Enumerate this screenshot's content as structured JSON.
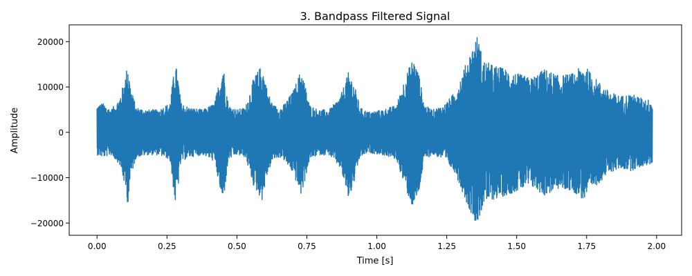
{
  "chart_data": {
    "type": "line",
    "title": "3. Bandpass Filtered Signal",
    "xlabel": "Time [s]",
    "ylabel": "Amplitude",
    "xlim": [
      -0.0995,
      2.0895
    ],
    "ylim": [
      -22700,
      23700
    ],
    "xticks": [
      0.0,
      0.25,
      0.5,
      0.75,
      1.0,
      1.25,
      1.5,
      1.75,
      2.0
    ],
    "xtick_labels": [
      "0.00",
      "0.25",
      "0.50",
      "0.75",
      "1.00",
      "1.25",
      "1.50",
      "1.75",
      "2.00"
    ],
    "yticks": [
      -20000,
      -10000,
      0,
      10000,
      20000
    ],
    "ytick_labels": [
      "−20000",
      "−10000",
      "0",
      "10000",
      "20000"
    ],
    "grid": false,
    "series": [
      {
        "color": "#1f77b4",
        "x_range": [
          0.0,
          1.985
        ],
        "envelope": {
          "t": [
            0.0,
            0.02,
            0.05,
            0.08,
            0.1,
            0.11,
            0.12,
            0.14,
            0.18,
            0.22,
            0.26,
            0.28,
            0.29,
            0.3,
            0.33,
            0.38,
            0.42,
            0.45,
            0.46,
            0.47,
            0.5,
            0.53,
            0.56,
            0.59,
            0.61,
            0.63,
            0.66,
            0.7,
            0.73,
            0.74,
            0.76,
            0.79,
            0.83,
            0.87,
            0.9,
            0.92,
            0.94,
            0.97,
            1.02,
            1.07,
            1.1,
            1.13,
            1.15,
            1.17,
            1.2,
            1.24,
            1.28,
            1.33,
            1.36,
            1.38,
            1.41,
            1.46,
            1.5,
            1.55,
            1.6,
            1.65,
            1.7,
            1.74,
            1.78,
            1.83,
            1.87,
            1.91,
            1.95,
            1.985
          ],
          "upper": [
            6000,
            6500,
            5000,
            7500,
            12000,
            15500,
            10000,
            5500,
            5000,
            5000,
            6500,
            15500,
            12000,
            6500,
            5500,
            5000,
            6500,
            15000,
            11000,
            6000,
            5000,
            5500,
            12000,
            15000,
            9000,
            6000,
            5500,
            9000,
            14000,
            11500,
            6000,
            5000,
            5000,
            8000,
            13500,
            10500,
            5500,
            4500,
            5000,
            6000,
            12000,
            16500,
            13000,
            6000,
            5000,
            6000,
            9000,
            17000,
            21500,
            16000,
            15000,
            14000,
            13000,
            12000,
            14000,
            12500,
            13000,
            15000,
            12000,
            9000,
            8000,
            8500,
            7500,
            7000
          ],
          "lower": [
            -5000,
            -5500,
            -5000,
            -7000,
            -12000,
            -16000,
            -10000,
            -5500,
            -5000,
            -5000,
            -6000,
            -16000,
            -12000,
            -6500,
            -5500,
            -5000,
            -6500,
            -16000,
            -11000,
            -6000,
            -5000,
            -5500,
            -12000,
            -15000,
            -9000,
            -6000,
            -5500,
            -9000,
            -14000,
            -11500,
            -6000,
            -5000,
            -5000,
            -8000,
            -15000,
            -11000,
            -5500,
            -4500,
            -5000,
            -6000,
            -12000,
            -17000,
            -13500,
            -6000,
            -5000,
            -6000,
            -9000,
            -17000,
            -20500,
            -16000,
            -15000,
            -14000,
            -13000,
            -12000,
            -14000,
            -12500,
            -13000,
            -15000,
            -12000,
            -9000,
            -8000,
            -8500,
            -7500,
            -7000
          ]
        }
      }
    ]
  }
}
